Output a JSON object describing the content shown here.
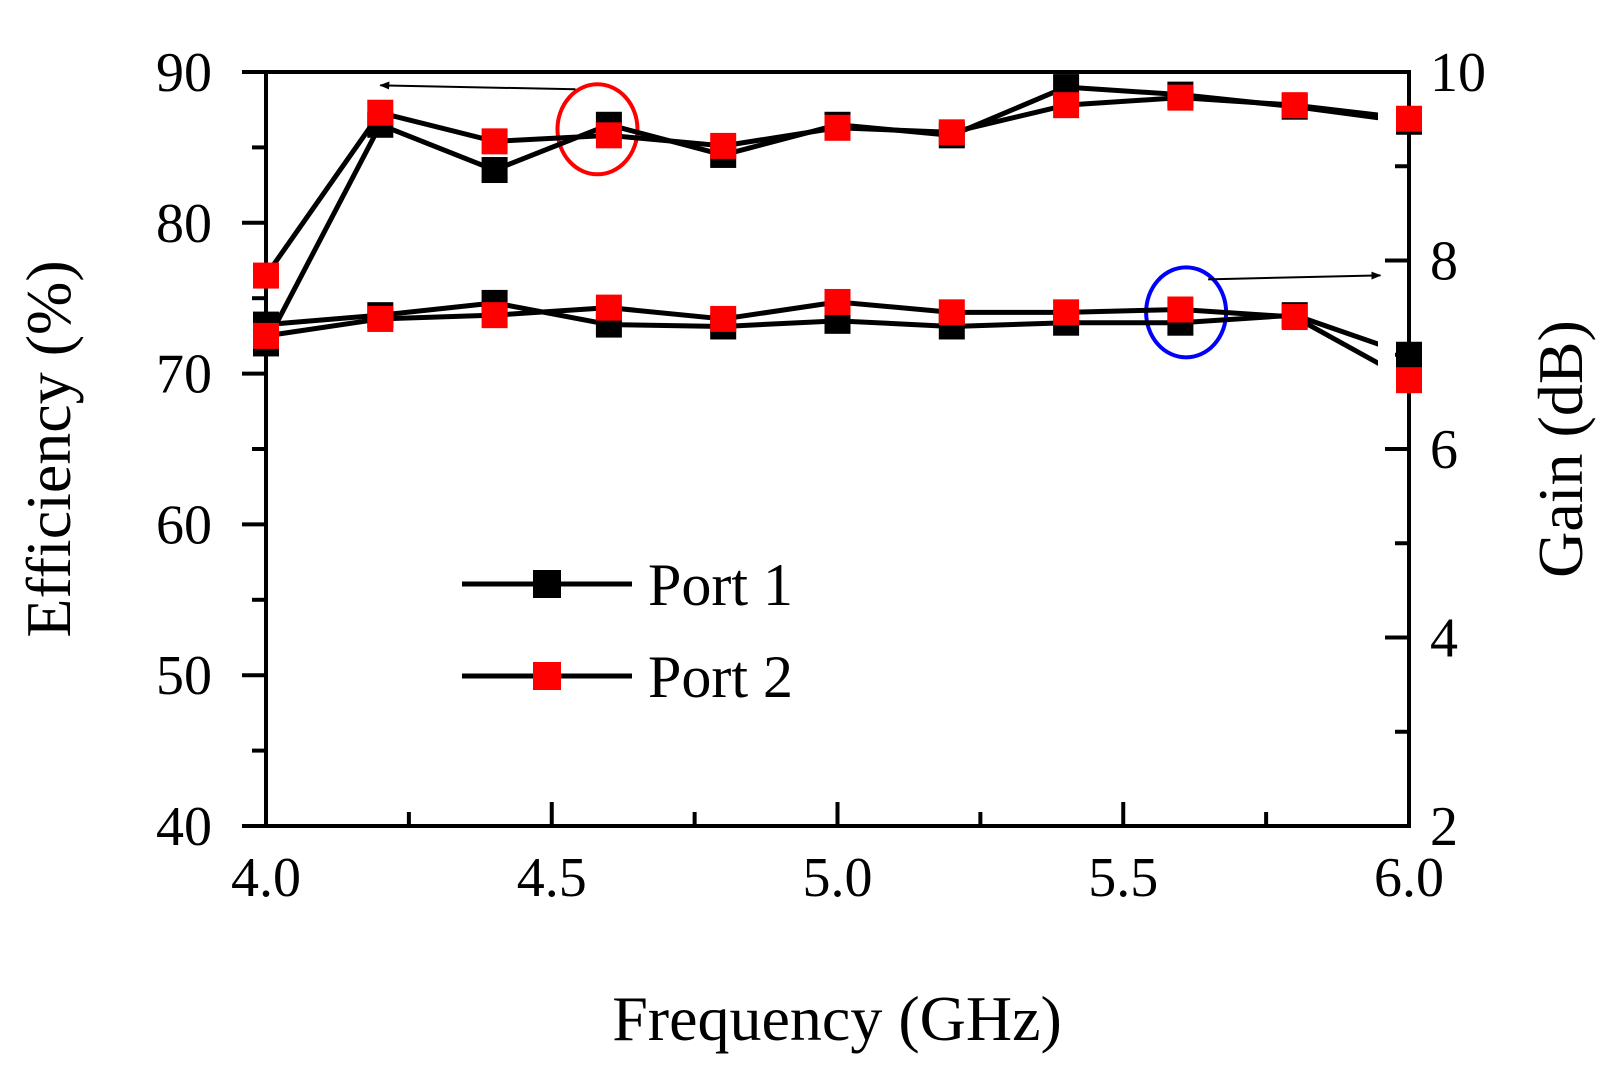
{
  "chart_data": {
    "type": "line",
    "xlabel": "Frequency (GHz)",
    "ylabel_left": "Efficiency (%)",
    "ylabel_right": "Gain (dB)",
    "xlim": [
      4.0,
      6.0
    ],
    "ylim_left": [
      40,
      90
    ],
    "ylim_right": [
      2,
      10
    ],
    "x_ticks": [
      "4.0",
      "4.5",
      "5.0",
      "5.5",
      "6.0"
    ],
    "y_left_ticks": [
      "40",
      "50",
      "60",
      "70",
      "80",
      "90"
    ],
    "y_right_ticks": [
      "2",
      "4",
      "6",
      "8",
      "10"
    ],
    "x": [
      4.0,
      4.2,
      4.4,
      4.6,
      4.8,
      5.0,
      5.2,
      5.4,
      5.6,
      5.8,
      6.0
    ],
    "series": [
      {
        "name": "Port 1",
        "axis": "left",
        "quantity": "Efficiency",
        "marker_color": "#000000",
        "values": [
          72.0,
          86.5,
          83.5,
          86.5,
          84.5,
          86.5,
          85.8,
          89.0,
          88.5,
          87.7,
          86.7
        ]
      },
      {
        "name": "Port 2",
        "axis": "left",
        "quantity": "Efficiency",
        "marker_color": "#ff0000",
        "values": [
          76.5,
          87.3,
          85.4,
          85.8,
          85.1,
          86.3,
          86.0,
          87.8,
          88.3,
          87.8,
          86.9
        ]
      },
      {
        "name": "Port 1",
        "axis": "right",
        "quantity": "Gain",
        "marker_color": "#000000",
        "values": [
          7.32,
          7.42,
          7.55,
          7.32,
          7.3,
          7.36,
          7.3,
          7.34,
          7.34,
          7.42,
          7.0
        ]
      },
      {
        "name": "Port 2",
        "axis": "right",
        "quantity": "Gain",
        "marker_color": "#ff0000",
        "values": [
          7.2,
          7.38,
          7.42,
          7.5,
          7.38,
          7.56,
          7.45,
          7.45,
          7.48,
          7.4,
          6.73
        ]
      }
    ],
    "legend": {
      "placement": "lower-left",
      "entries": [
        {
          "label": "Port 1",
          "marker_color": "#000000"
        },
        {
          "label": "Port 2",
          "marker_color": "#ff0000"
        }
      ]
    },
    "annotations": [
      {
        "shape": "circle",
        "color": "#ff0000",
        "x": 4.58,
        "y": 86.2,
        "axis": "left",
        "arrow_to_x": 4.2,
        "meaning": "efficiency curves read on left axis"
      },
      {
        "shape": "circle",
        "color": "#0000ff",
        "x": 5.61,
        "y": 7.45,
        "axis": "right",
        "arrow_to_x": 5.95,
        "meaning": "gain curves read on right axis"
      }
    ],
    "grid": false
  }
}
